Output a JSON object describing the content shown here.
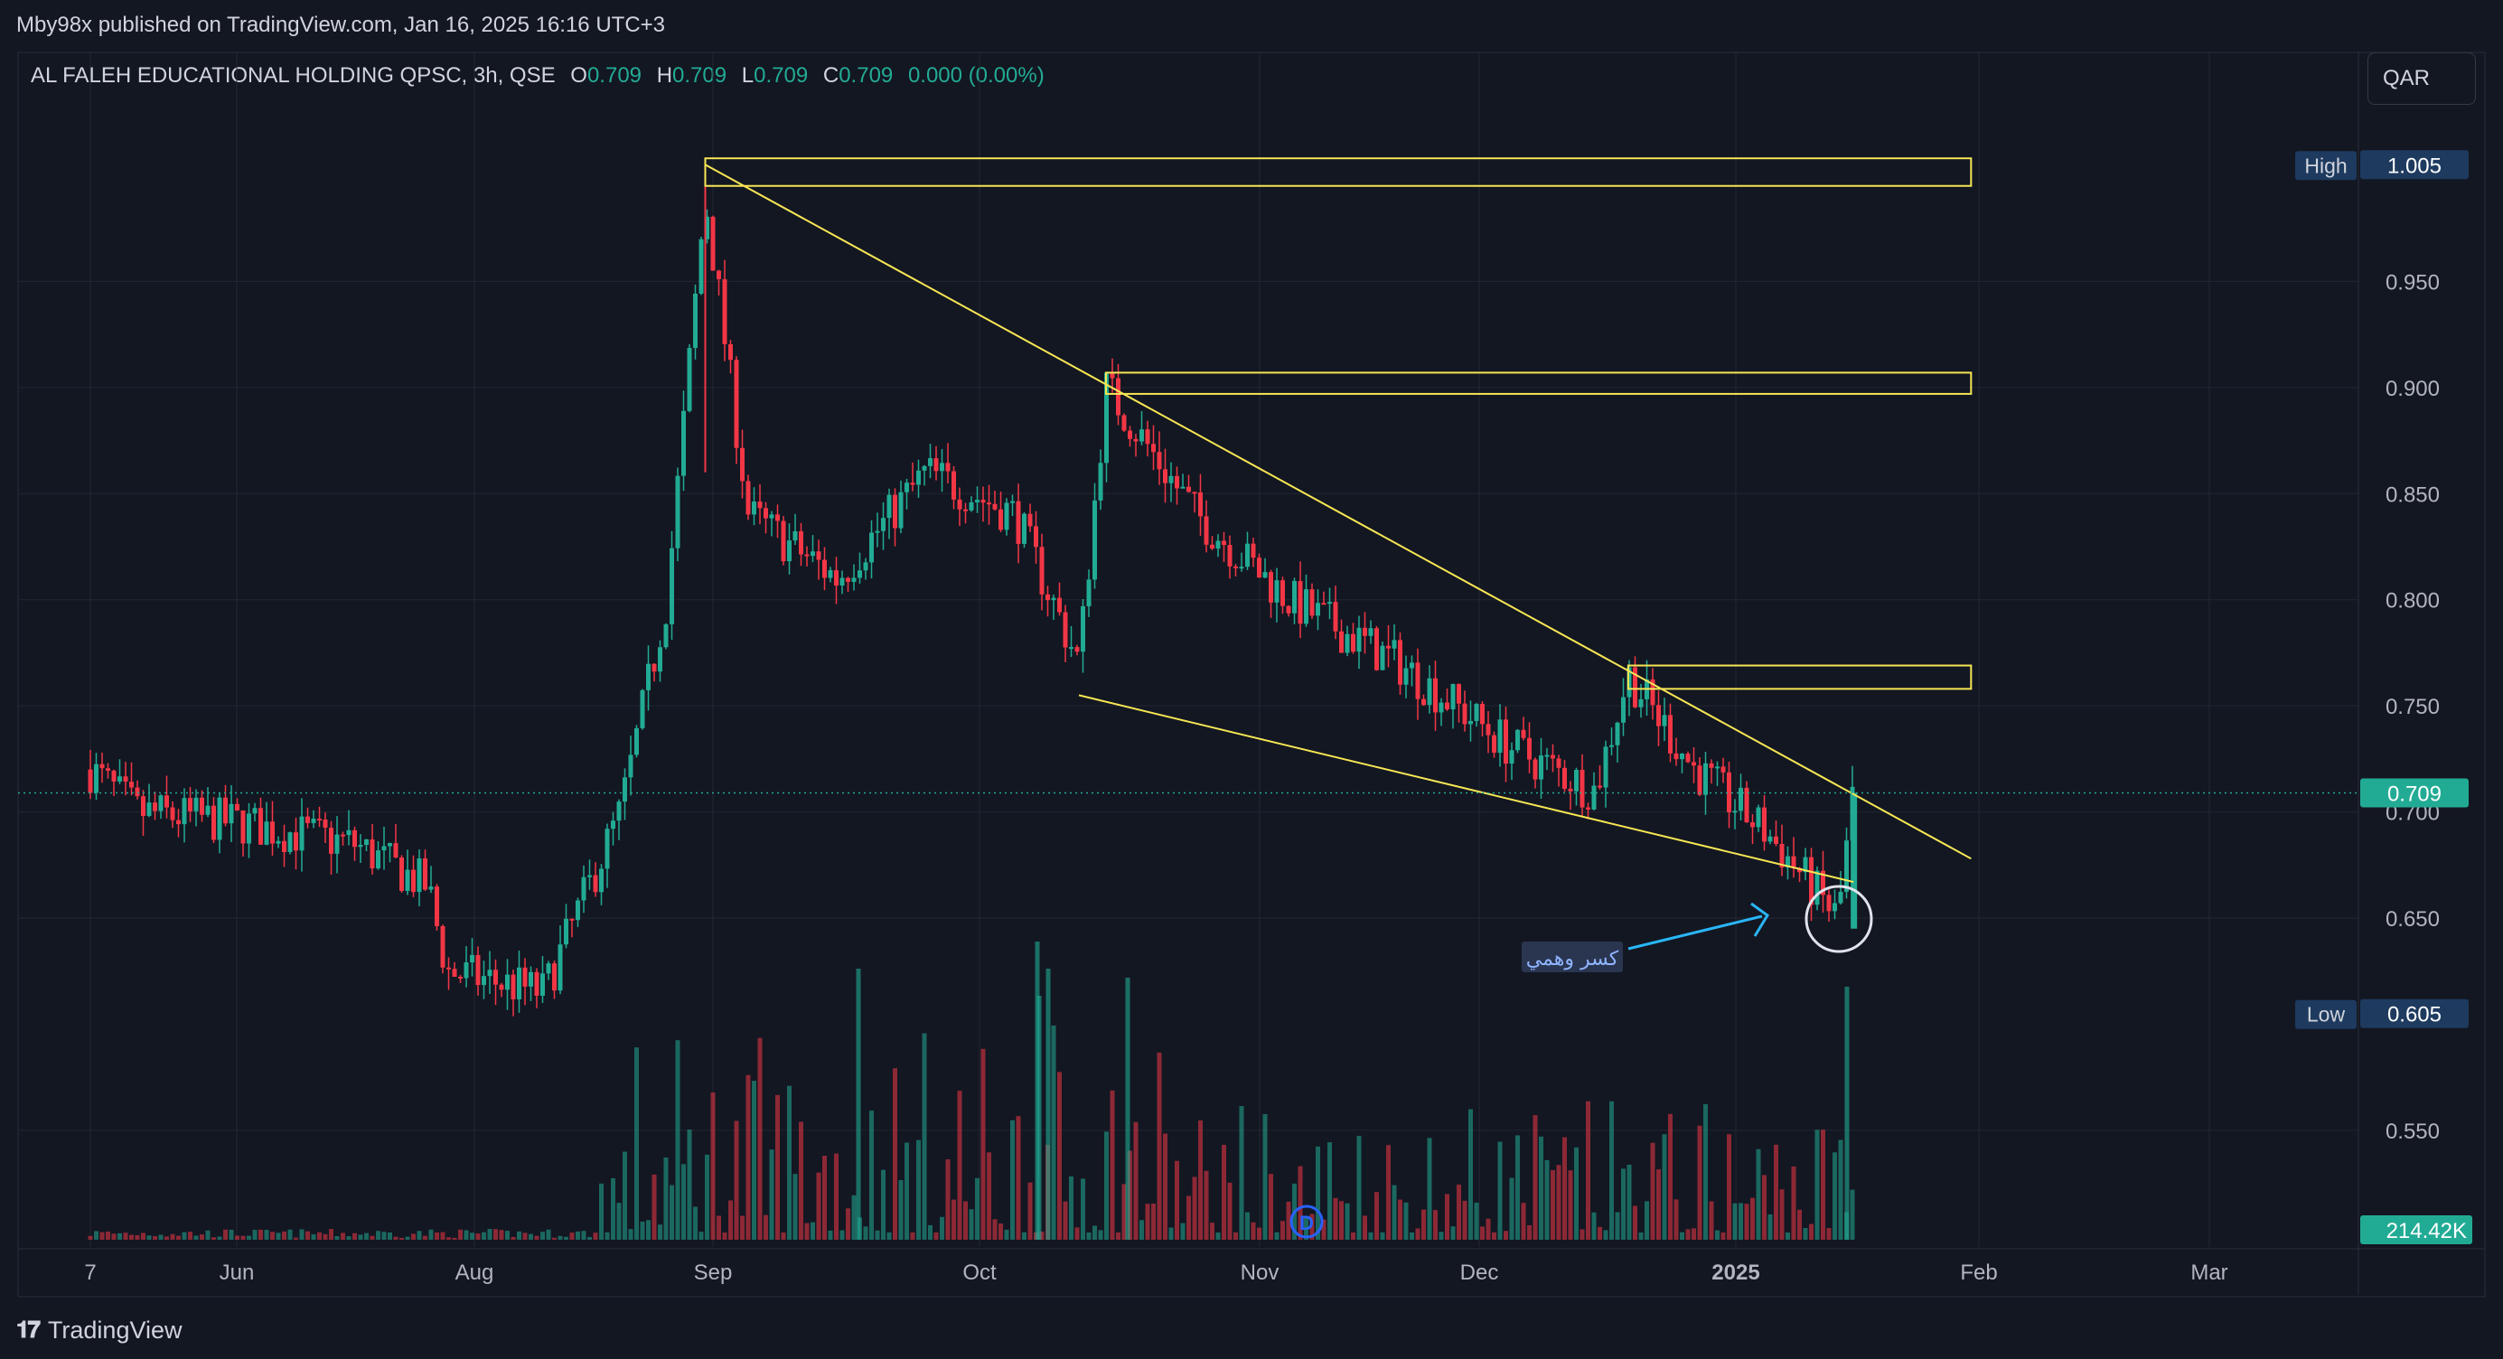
{
  "header": {
    "published_by": "Mby98x published on TradingView.com, Jan 16, 2025 16:16 UTC+3"
  },
  "symbol": {
    "name": "AL FALEH EDUCATIONAL HOLDING QPSC, 3h, QSE",
    "open_label": "O",
    "open": "0.709",
    "high_label": "H",
    "high": "0.709",
    "low_label": "L",
    "low": "0.709",
    "close_label": "C",
    "close": "0.709",
    "change": "0.000 (0.00%)"
  },
  "currency_button": "QAR",
  "footer": {
    "brand": "TradingView"
  },
  "colors": {
    "background": "#131722",
    "up": "#22ab94",
    "down": "#f23645",
    "annotation": "#f7e654",
    "arrow": "#29b6f6",
    "grid": "#232733"
  },
  "chart_data": {
    "type": "candlestick",
    "interval": "3h",
    "x_ticks": [
      "7",
      "Jun",
      "Aug",
      "Sep",
      "Oct",
      "Nov",
      "Dec",
      "2025",
      "Feb",
      "Mar"
    ],
    "y_ticks": [
      "0.950",
      "0.900",
      "0.850",
      "0.800",
      "0.750",
      "0.700",
      "0.650",
      "0.550"
    ],
    "ylim": [
      0.53,
      1.03
    ],
    "price_labels": [
      {
        "label": "High",
        "value": "1.005"
      },
      {
        "label": "",
        "value": "0.709"
      },
      {
        "label": "Low",
        "value": "0.605"
      }
    ],
    "volume_label": "214.42K",
    "last_price": 0.709,
    "annotation_text": "كسر وهمي",
    "events_badge": "D",
    "price_path": [
      {
        "date": "2024-05-07",
        "price": 0.72
      },
      {
        "date": "2024-05-15",
        "price": 0.7
      },
      {
        "date": "2024-06-01",
        "price": 0.695
      },
      {
        "date": "2024-07-01",
        "price": 0.685
      },
      {
        "date": "2024-07-20",
        "price": 0.665
      },
      {
        "date": "2024-07-25",
        "price": 0.625
      },
      {
        "date": "2024-08-10",
        "price": 0.615
      },
      {
        "date": "2024-08-20",
        "price": 0.7
      },
      {
        "date": "2024-08-26",
        "price": 0.8
      },
      {
        "date": "2024-08-31",
        "price": 0.99
      },
      {
        "date": "2024-09-05",
        "price": 0.84
      },
      {
        "date": "2024-09-15",
        "price": 0.81
      },
      {
        "date": "2024-09-25",
        "price": 0.86
      },
      {
        "date": "2024-10-05",
        "price": 0.84
      },
      {
        "date": "2024-10-12",
        "price": 0.77
      },
      {
        "date": "2024-10-15",
        "price": 0.9
      },
      {
        "date": "2024-10-25",
        "price": 0.84
      },
      {
        "date": "2024-11-05",
        "price": 0.8
      },
      {
        "date": "2024-11-20",
        "price": 0.77
      },
      {
        "date": "2024-12-05",
        "price": 0.73
      },
      {
        "date": "2024-12-15",
        "price": 0.71
      },
      {
        "date": "2024-12-19",
        "price": 0.765
      },
      {
        "date": "2024-12-27",
        "price": 0.72
      },
      {
        "date": "2025-01-05",
        "price": 0.69
      },
      {
        "date": "2025-01-14",
        "price": 0.65
      },
      {
        "date": "2025-01-16",
        "price": 0.709
      }
    ],
    "zones": [
      {
        "from": "2024-08-31",
        "to": "2025-01-31",
        "low": 0.995,
        "high": 1.008
      },
      {
        "from": "2024-10-15",
        "to": "2025-01-31",
        "low": 0.897,
        "high": 0.907
      },
      {
        "from": "2024-12-19",
        "to": "2025-01-31",
        "low": 0.758,
        "high": 0.769
      }
    ],
    "trendlines": [
      {
        "from_date": "2024-08-31",
        "from_price": 1.005,
        "to_date": "2025-01-31",
        "to_price": 0.678
      },
      {
        "from_date": "2024-10-12",
        "from_price": 0.755,
        "to_date": "2025-01-16",
        "to_price": 0.667
      }
    ]
  }
}
